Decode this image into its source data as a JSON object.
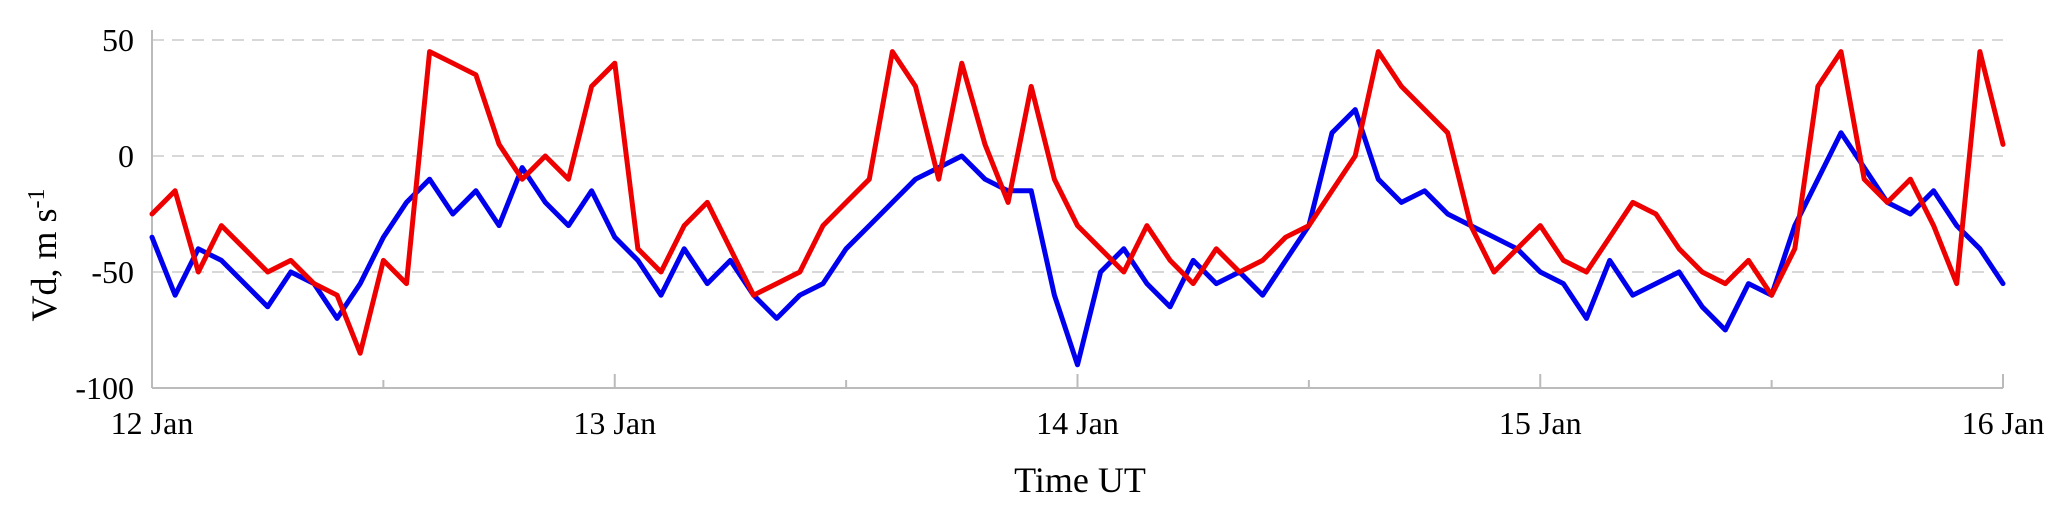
{
  "chart_data": {
    "type": "line",
    "xlabel": "Time UT",
    "ylabel": "Vd, m s",
    "ylabel_superscript": "-1",
    "ylim": [
      -100,
      50
    ],
    "yticks": [
      50,
      0,
      -50,
      -100
    ],
    "xlim": [
      "12 Jan",
      "16 Jan"
    ],
    "xticks": [
      {
        "value": 0,
        "label": "12 Jan"
      },
      {
        "value": 1,
        "label": "13 Jan"
      },
      {
        "value": 2,
        "label": "14 Jan"
      },
      {
        "value": 3,
        "label": "15 Jan"
      },
      {
        "value": 4,
        "label": "16 Jan"
      }
    ],
    "grid": "dashed horizontal",
    "series": [
      {
        "color": "#0000ee",
        "x": [
          0,
          0.05,
          0.1,
          0.15,
          0.2,
          0.25,
          0.3,
          0.35,
          0.4,
          0.45,
          0.5,
          0.55,
          0.6,
          0.65,
          0.7,
          0.75,
          0.8,
          0.85,
          0.9,
          0.95,
          1,
          1.05,
          1.1,
          1.15,
          1.2,
          1.25,
          1.3,
          1.35,
          1.4,
          1.45,
          1.5,
          1.55,
          1.6,
          1.65,
          1.7,
          1.75,
          1.8,
          1.85,
          1.9,
          1.95,
          2,
          2.05,
          2.1,
          2.15,
          2.2,
          2.25,
          2.3,
          2.35,
          2.4,
          2.45,
          2.5,
          2.55,
          2.6,
          2.65,
          2.7,
          2.75,
          2.8,
          2.85,
          2.9,
          2.95,
          3,
          3.05,
          3.1,
          3.15,
          3.2,
          3.25,
          3.3,
          3.35,
          3.4,
          3.45,
          3.5,
          3.55,
          3.6,
          3.65,
          3.7,
          3.75,
          3.8,
          3.85,
          3.9,
          3.95,
          4
        ],
        "values": [
          -35,
          -60,
          -40,
          -45,
          -55,
          -65,
          -50,
          -55,
          -70,
          -55,
          -35,
          -20,
          -10,
          -25,
          -15,
          -30,
          -5,
          -20,
          -30,
          -15,
          -35,
          -45,
          -60,
          -40,
          -55,
          -45,
          -60,
          -70,
          -60,
          -55,
          -40,
          -30,
          -20,
          -10,
          -5,
          0,
          -10,
          -15,
          -15,
          -60,
          -90,
          -50,
          -40,
          -55,
          -65,
          -45,
          -55,
          -50,
          -60,
          -45,
          -30,
          10,
          20,
          -10,
          -20,
          -15,
          -25,
          -30,
          -35,
          -40,
          -50,
          -55,
          -70,
          -45,
          -60,
          -55,
          -50,
          -65,
          -75,
          -55,
          -60,
          -30,
          -10,
          10,
          -5,
          -20,
          -25,
          -15,
          -30,
          -40,
          -55
        ]
      },
      {
        "color": "#ee0000",
        "x": [
          0,
          0.05,
          0.1,
          0.15,
          0.2,
          0.25,
          0.3,
          0.35,
          0.4,
          0.45,
          0.5,
          0.55,
          0.6,
          0.65,
          0.7,
          0.75,
          0.8,
          0.85,
          0.9,
          0.95,
          1,
          1.05,
          1.1,
          1.15,
          1.2,
          1.25,
          1.3,
          1.35,
          1.4,
          1.45,
          1.5,
          1.55,
          1.6,
          1.65,
          1.7,
          1.75,
          1.8,
          1.85,
          1.9,
          1.95,
          2,
          2.05,
          2.1,
          2.15,
          2.2,
          2.25,
          2.3,
          2.35,
          2.4,
          2.45,
          2.5,
          2.55,
          2.6,
          2.65,
          2.7,
          2.75,
          2.8,
          2.85,
          2.9,
          2.95,
          3,
          3.05,
          3.1,
          3.15,
          3.2,
          3.25,
          3.3,
          3.35,
          3.4,
          3.45,
          3.5,
          3.55,
          3.6,
          3.65,
          3.7,
          3.75,
          3.8,
          3.85,
          3.9,
          3.95,
          4
        ],
        "values": [
          -25,
          -15,
          -50,
          -30,
          -40,
          -50,
          -45,
          -55,
          -60,
          -85,
          -45,
          -55,
          45,
          40,
          35,
          5,
          -10,
          0,
          -10,
          30,
          40,
          -40,
          -50,
          -30,
          -20,
          -40,
          -60,
          -55,
          -50,
          -30,
          -20,
          -10,
          45,
          30,
          -10,
          40,
          5,
          -20,
          30,
          -10,
          -30,
          -40,
          -50,
          -30,
          -45,
          -55,
          -40,
          -50,
          -45,
          -35,
          -30,
          -15,
          0,
          45,
          30,
          20,
          10,
          -30,
          -50,
          -40,
          -30,
          -45,
          -50,
          -35,
          -20,
          -25,
          -40,
          -50,
          -55,
          -45,
          -60,
          -40,
          30,
          45,
          -10,
          -20,
          -10,
          -30,
          -55,
          45,
          5
        ]
      }
    ]
  }
}
